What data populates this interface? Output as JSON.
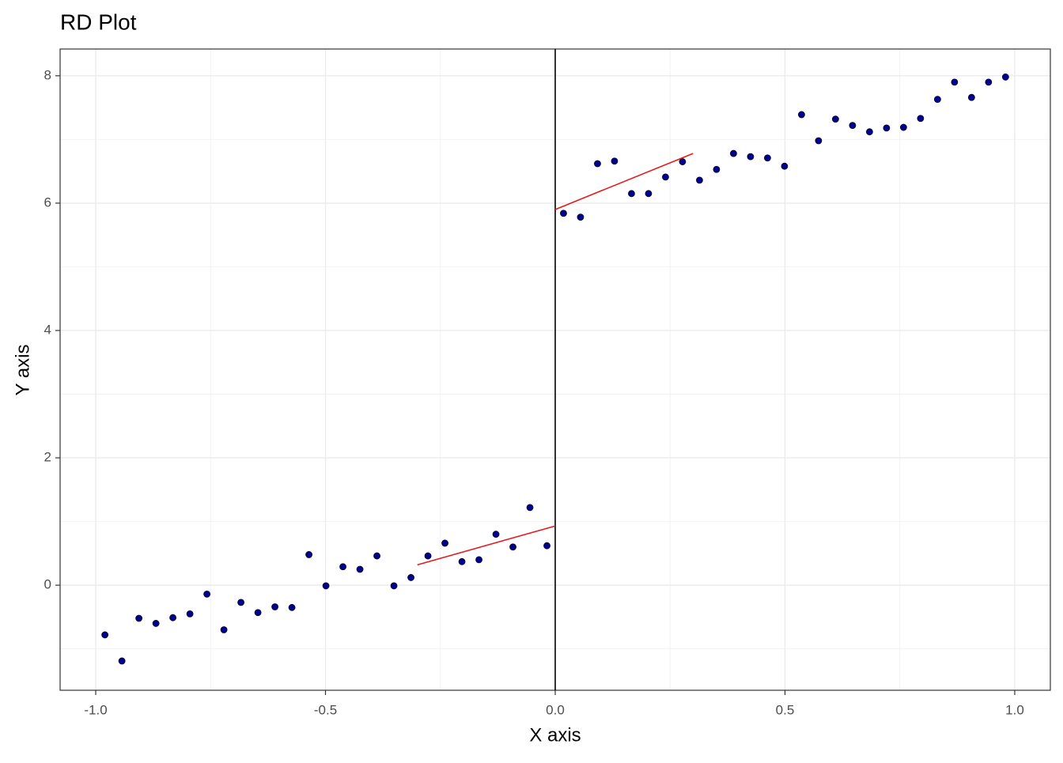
{
  "chart_data": {
    "type": "scatter",
    "title": "RD Plot",
    "x_label": "X axis",
    "y_label": "Y axis",
    "xlim": [
      -1.0775,
      1.0775
    ],
    "ylim": [
      -1.65,
      8.42
    ],
    "xticks": [
      {
        "value": -1.0,
        "label": "-1.0"
      },
      -0.5,
      {
        "value": 0,
        "label": "0.0"
      },
      0.5,
      {
        "value": 1.0,
        "label": "1.0"
      }
    ],
    "yticks": [
      0,
      2,
      4,
      6,
      8
    ],
    "xminor": [
      -0.75,
      -0.25,
      0.25,
      0.75
    ],
    "yminor": [
      -1,
      1,
      3,
      5,
      7
    ],
    "grid": true,
    "cutoff": 0,
    "points": {
      "color": "#00008b",
      "x": [
        -0.98,
        -0.943,
        -0.906,
        -0.869,
        -0.832,
        -0.795,
        -0.758,
        -0.721,
        -0.684,
        -0.647,
        -0.61,
        -0.573,
        -0.536,
        -0.499,
        -0.462,
        -0.425,
        -0.388,
        -0.351,
        -0.314,
        -0.277,
        -0.24,
        -0.203,
        -0.166,
        -0.129,
        -0.092,
        -0.055,
        -0.018,
        0.018,
        0.055,
        0.092,
        0.129,
        0.166,
        0.203,
        0.24,
        0.277,
        0.314,
        0.351,
        0.388,
        0.425,
        0.462,
        0.499,
        0.536,
        0.573,
        0.61,
        0.647,
        0.684,
        0.721,
        0.758,
        0.795,
        0.832,
        0.869,
        0.906,
        0.943,
        0.98
      ],
      "y": [
        -0.78,
        -1.19,
        -0.52,
        -0.6,
        -0.51,
        -0.45,
        -0.14,
        -0.7,
        -0.27,
        -0.43,
        -0.34,
        -0.35,
        0.48,
        -0.01,
        0.29,
        0.25,
        0.46,
        -0.01,
        0.12,
        0.46,
        0.66,
        0.37,
        0.4,
        0.8,
        0.6,
        1.22,
        0.62,
        5.84,
        5.78,
        6.62,
        6.66,
        6.15,
        6.15,
        6.41,
        6.65,
        6.36,
        6.53,
        6.78,
        6.73,
        6.71,
        6.58,
        7.39,
        6.98,
        7.32,
        7.22,
        7.12,
        7.18,
        7.19,
        7.33,
        7.63,
        7.9,
        7.66,
        7.9,
        7.98
      ]
    },
    "fits": [
      {
        "color": "#e41a1c",
        "x": [
          -0.3,
          0
        ],
        "y": [
          0.32,
          0.93
        ]
      },
      {
        "color": "#e41a1c",
        "x": [
          0,
          0.3
        ],
        "y": [
          5.9,
          6.78
        ]
      }
    ]
  }
}
